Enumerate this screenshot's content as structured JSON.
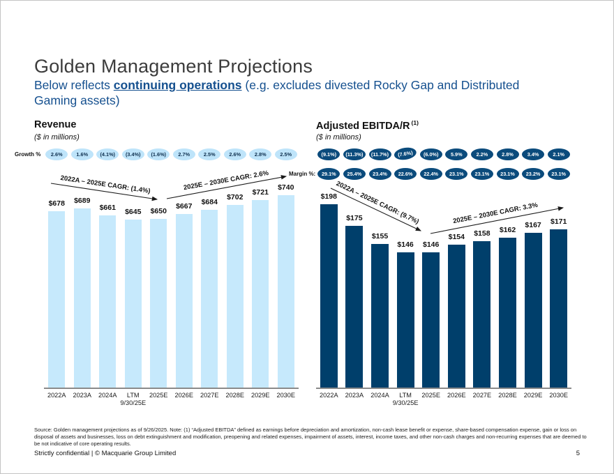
{
  "slide": {
    "title": "Golden Management Projections",
    "subtitle_prefix": "Below reflects ",
    "subtitle_bold": "continuing operations",
    "subtitle_suffix": " (e.g. excludes divested Rocky Gap and Distributed Gaming assets)",
    "source_note": "Source: Golden management projections as of 9/26/2025. Note: (1) “Adjusted EBITDA” defined as earnings before depreciation and amortization, non-cash lease benefit or expense, share-based compensation expense, gain or loss on disposal of assets and businesses, loss on debt extinguishment and modification, preopening and related expenses, impairment of assets, interest, income taxes, and other non-cash charges and non-recurring expenses that are deemed to be not indicative of core operating results.",
    "footer_left": "Strictly confidential | © Macquarie Group Limited",
    "page_number": "5"
  },
  "colors": {
    "subtitle_blue": "#15508f",
    "light_bar": "#c6e9fc",
    "light_badge": "#bee4fa",
    "dark_bar": "#003f6b",
    "dark_badge": "#0b4b7c",
    "title_gray": "#3c3c3c"
  },
  "chart_data": [
    {
      "type": "bar",
      "title": "Revenue",
      "subtitle": "($ in millions)",
      "growth_row_label": "Growth %",
      "categories": [
        "2022A",
        "2023A",
        "2024A",
        "LTM\n9/30/25E",
        "2025E",
        "2026E",
        "2027E",
        "2028E",
        "2029E",
        "2030E"
      ],
      "values": [
        678,
        689,
        661,
        645,
        650,
        667,
        684,
        702,
        721,
        740
      ],
      "value_prefix": "$",
      "growth_pct": [
        "2.6%",
        "1.6%",
        "(4.1%)",
        "(3.4%)",
        "(1.6%)",
        "2.7%",
        "2.5%",
        "2.6%",
        "2.8%",
        "2.5%"
      ],
      "cagr_annotations": [
        "2022A – 2025E CAGR: (1.4%)",
        "2025E – 2030E CAGR: 2.6%"
      ],
      "ylim": [
        0,
        740
      ],
      "legend_position": "none",
      "grid": false
    },
    {
      "type": "bar",
      "title": "Adjusted EBITDA/R",
      "title_superscript": "(1)",
      "subtitle": "($ in millions)",
      "margin_row_label": "Margin %:",
      "categories": [
        "2022A",
        "2023A",
        "2024A",
        "LTM\n9/30/25E",
        "2025E",
        "2026E",
        "2027E",
        "2028E",
        "2029E",
        "2030E"
      ],
      "values": [
        198,
        175,
        155,
        146,
        146,
        154,
        158,
        162,
        167,
        171
      ],
      "value_prefix": "$",
      "growth_pct": [
        "(9.1%)",
        "(11.3%)",
        "(11.7%)",
        "(7.6%)",
        "(6.0%)",
        "5.9%",
        "2.2%",
        "2.8%",
        "3.4%",
        "2.1%"
      ],
      "margin_pct": [
        "29.1%",
        "25.4%",
        "23.4%",
        "22.6%",
        "22.4%",
        "23.1%",
        "23.1%",
        "23.1%",
        "23.2%",
        "23.1%"
      ],
      "cagr_annotations": [
        "2022A – 2025E CAGR: (9.7%)",
        "2025E – 2030E CAGR: 3.3%"
      ],
      "ylim": [
        0,
        200
      ],
      "legend_position": "none",
      "grid": false
    }
  ]
}
